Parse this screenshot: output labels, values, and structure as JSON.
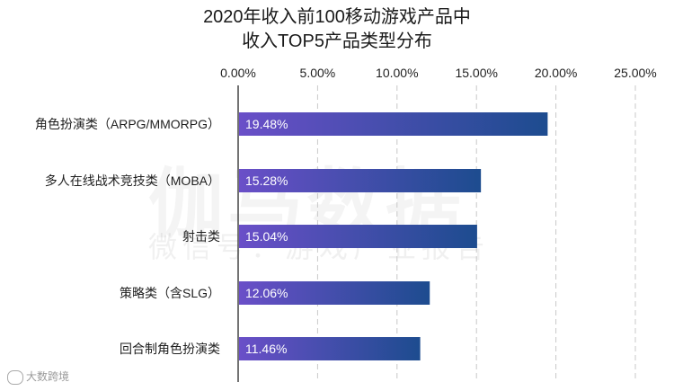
{
  "chart_data": {
    "type": "bar",
    "orientation": "horizontal",
    "title": "2020年收入前100移动游戏产品中",
    "subtitle": "收入TOP5产品类型分布",
    "categories": [
      "角色扮演类（ARPG/MMORPG）",
      "多人在线战术竞技类（MOBA）",
      "射击类",
      "策略类（含SLG）",
      "回合制角色扮演类"
    ],
    "values": [
      19.48,
      15.28,
      15.04,
      12.06,
      11.46
    ],
    "value_labels": [
      "19.48%",
      "15.28%",
      "15.04%",
      "12.06%",
      "11.46%"
    ],
    "xticks": [
      "0.00%",
      "5.00%",
      "10.00%",
      "15.00%",
      "20.00%",
      "25.00%"
    ],
    "xlim": [
      0,
      25
    ],
    "grid": true,
    "colors": {
      "bar_start": "#6a4fc8",
      "bar_end": "#1d4c8f"
    }
  },
  "watermark": {
    "line1": "伽马数据",
    "line2": "微信号：游戏产业报告"
  },
  "brand": "大数跨境"
}
